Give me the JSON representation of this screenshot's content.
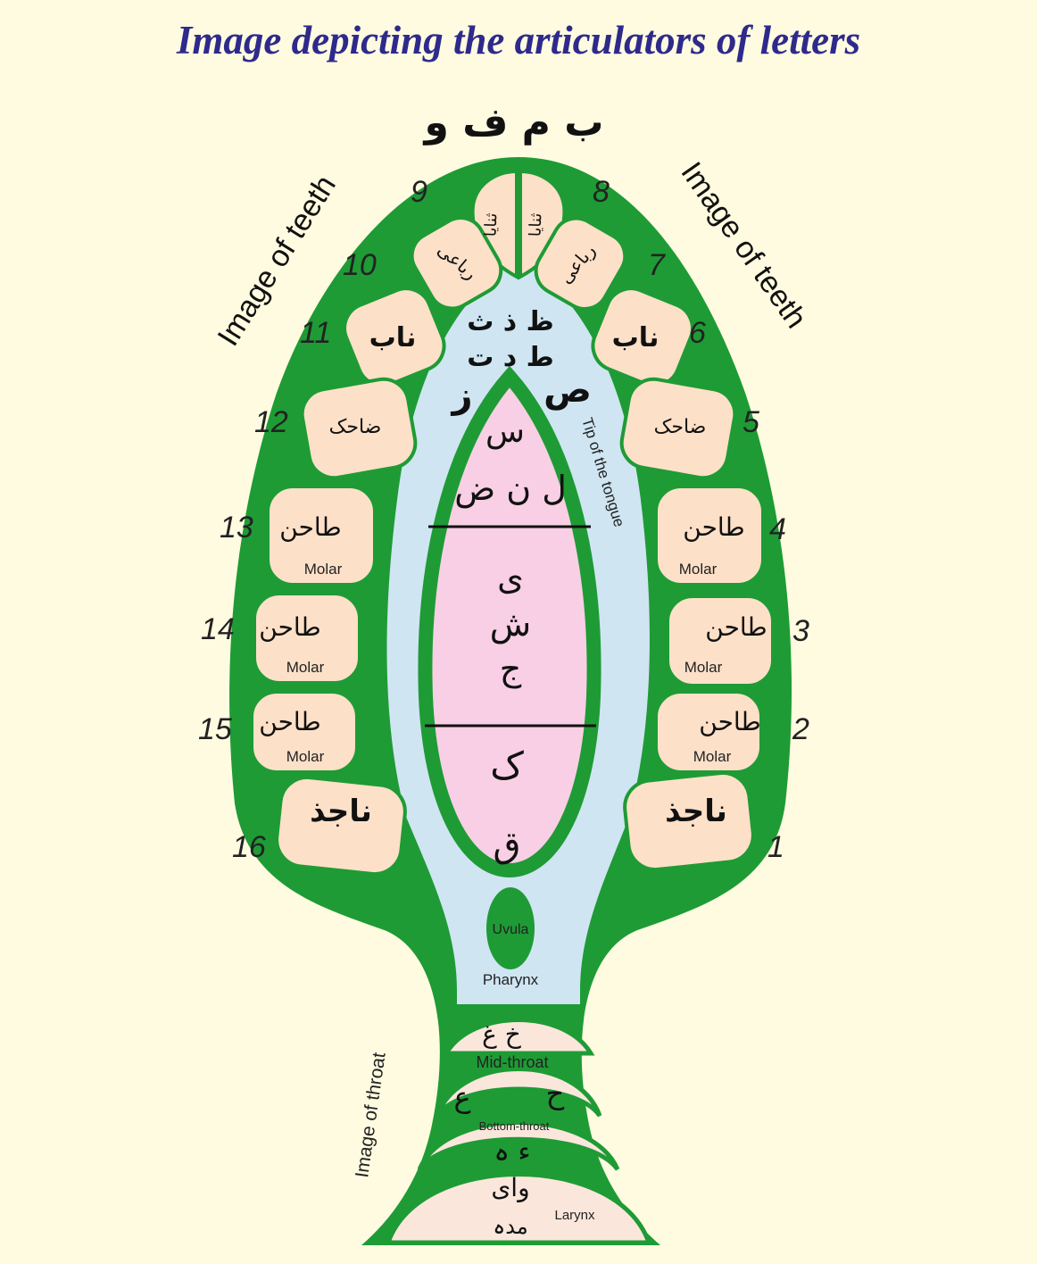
{
  "title": "Image depicting the articulators of letters",
  "labels": {
    "teeth_left": "Image of teeth",
    "teeth_right": "Image of teeth",
    "throat": "Image of throat",
    "tongue_tip": "Tip of the tongue",
    "uvula": "Uvula",
    "pharynx": "Pharynx",
    "mid_throat": "Mid-throat",
    "bottom_throat": "Bottom-throat",
    "larynx": "Larynx"
  },
  "lips_letters": "ب م ف و",
  "teeth": [
    {
      "num": "1",
      "name": "ناجذ",
      "sub": ""
    },
    {
      "num": "2",
      "name": "طاحن",
      "sub": "Molar"
    },
    {
      "num": "3",
      "name": "طاحن",
      "sub": "Molar"
    },
    {
      "num": "4",
      "name": "طاحن",
      "sub": "Molar"
    },
    {
      "num": "5",
      "name": "ضاحک",
      "sub": ""
    },
    {
      "num": "6",
      "name": "ناب",
      "sub": ""
    },
    {
      "num": "7",
      "name": "رباعی",
      "sub": ""
    },
    {
      "num": "8",
      "name": "ثنایا",
      "sub": ""
    },
    {
      "num": "9",
      "name": "ثنایا",
      "sub": ""
    },
    {
      "num": "10",
      "name": "رباعی",
      "sub": ""
    },
    {
      "num": "11",
      "name": "ناب",
      "sub": ""
    },
    {
      "num": "12",
      "name": "ضاحک",
      "sub": ""
    },
    {
      "num": "13",
      "name": "طاحن",
      "sub": "Molar"
    },
    {
      "num": "14",
      "name": "طاحن",
      "sub": "Molar"
    },
    {
      "num": "15",
      "name": "طاحن",
      "sub": "Molar"
    },
    {
      "num": "16",
      "name": "ناجذ",
      "sub": ""
    }
  ],
  "palate_letters": {
    "row1": "ظ ذ ث",
    "row2": "ط د ت",
    "left": "ز",
    "right": "ص"
  },
  "tongue_letters": {
    "top": "س",
    "upper": "ل ن ض",
    "mid1": "ی",
    "mid2": "ش",
    "mid3": "ج",
    "lower": "ک",
    "back": "ق"
  },
  "throat_letters": {
    "upper": "خ غ",
    "mid_left": "ع",
    "mid_right": "ح",
    "bottom": "ء ہ",
    "larynx1": "وای",
    "larynx2": "مدہ"
  },
  "colors": {
    "green": "#1e9b35",
    "tooth": "#fde0c8",
    "palate": "#cfe5f2",
    "tongue": "#f8cfe4",
    "throat": "#fbe6dc",
    "background": "#fffbe0",
    "title": "#2e2a8c"
  }
}
